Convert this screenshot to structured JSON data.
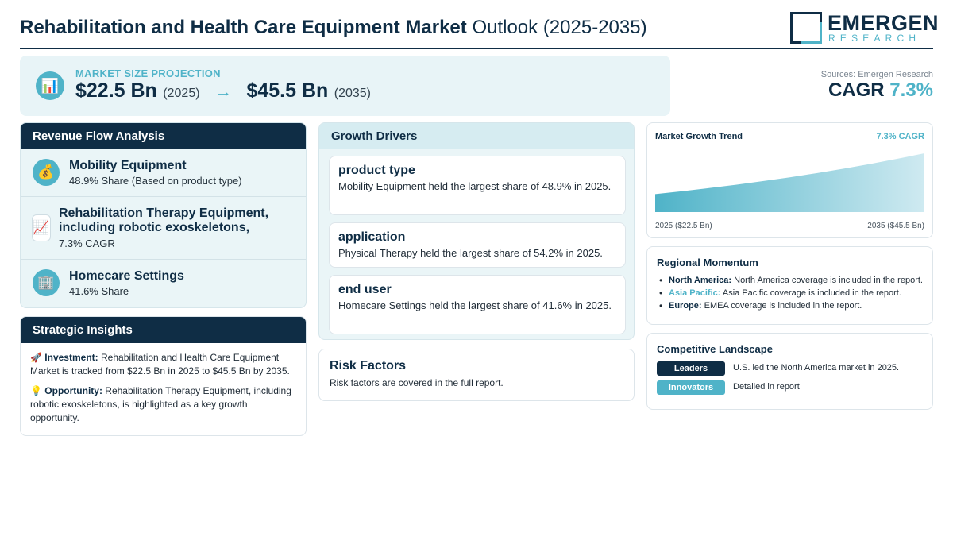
{
  "header": {
    "title_bold": "Rehabilitation and Health Care Equipment Market",
    "title_light": "Outlook (2025-2035)",
    "logo_name": "EMERGEN",
    "logo_sub": "RESEARCH"
  },
  "market_size": {
    "label": "MARKET SIZE PROJECTION",
    "icon": "bar-chart-icon",
    "start_value": "$22.5 Bn",
    "start_year": "(2025)",
    "arrow": "→",
    "end_value": "$45.5 Bn",
    "end_year": "(2035)"
  },
  "sources": "Sources: Emergen Research",
  "cagr": {
    "label": "CAGR",
    "value": "7.3%"
  },
  "revenue_flow": {
    "title": "Revenue Flow Analysis",
    "items": [
      {
        "icon": "money-bag-icon",
        "name": "Mobility Equipment",
        "sub": "48.9% Share (Based on product type)"
      },
      {
        "icon": "trend-up-icon",
        "name": "Rehabilitation Therapy Equipment, including robotic exoskeletons,",
        "sub": "7.3% CAGR"
      },
      {
        "icon": "building-icon",
        "name": "Homecare Settings",
        "sub": "41.6% Share"
      }
    ]
  },
  "strategic_insights": {
    "title": "Strategic Insights",
    "investment_label": "Investment:",
    "investment_text": "Rehabilitation and Health Care Equipment Market is tracked from $22.5 Bn in 2025 to $45.5 Bn by 2035.",
    "opportunity_label": "Opportunity:",
    "opportunity_text": "Rehabilitation Therapy Equipment, including robotic exoskeletons, is highlighted as a key growth opportunity."
  },
  "growth_drivers": {
    "title": "Growth Drivers",
    "items": [
      {
        "title": "product type",
        "text": "Mobility Equipment held the largest share of 48.9% in 2025."
      },
      {
        "title": "application",
        "text": "Physical Therapy held the largest share of 54.2% in 2025."
      },
      {
        "title": "end user",
        "text": "Homecare Settings held the largest share of 41.6% in 2025."
      }
    ]
  },
  "risk": {
    "title": "Risk Factors",
    "text": "Risk factors are covered in the full report."
  },
  "trend": {
    "title": "Market Growth Trend",
    "cagr": "7.3% CAGR",
    "start_label": "2025 ($22.5 Bn)",
    "end_label": "2035 ($45.5 Bn)"
  },
  "chart_data": {
    "type": "area",
    "x": [
      2025,
      2035
    ],
    "values": [
      22.5,
      45.5
    ],
    "title": "Market Growth Trend",
    "xlabel": "",
    "ylabel": ""
  },
  "regional": {
    "title": "Regional Momentum",
    "items": [
      {
        "region": "North America:",
        "text": "North America coverage is included in the report."
      },
      {
        "region": "Asia Pacific:",
        "text": "Asia Pacific coverage is included in the report."
      },
      {
        "region": "Europe:",
        "text": "EMEA coverage is included in the report."
      }
    ]
  },
  "competitive": {
    "title": "Competitive Landscape",
    "leaders_label": "Leaders",
    "leaders_text": "U.S. led the North America market in 2025.",
    "innovators_label": "Innovators",
    "innovators_text": "Detailed in report"
  },
  "colors": {
    "navy": "#0f2d45",
    "teal": "#4fb3c8",
    "panel": "#e8f4f7"
  }
}
